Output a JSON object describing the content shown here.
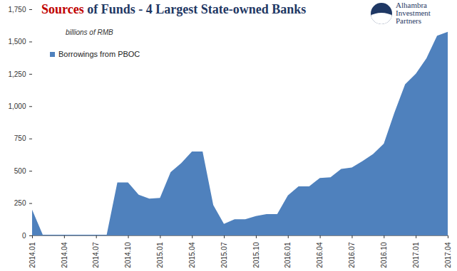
{
  "chart_data": {
    "type": "area",
    "title": "Sources of Funds - 4 Largest State-owned Banks",
    "subtitle": "billions of RMB",
    "logo_text": "Alhambra Investment Partners",
    "categories": [
      "2014.01",
      null,
      null,
      "2014.04",
      null,
      null,
      "2014.07",
      null,
      null,
      "2014.10",
      null,
      null,
      "2015.01",
      null,
      null,
      "2015.04",
      null,
      null,
      "2015.07",
      null,
      null,
      "2015.10",
      null,
      null,
      "2016.01",
      null,
      null,
      "2016.04",
      null,
      null,
      "2016.07",
      null,
      null,
      "2016.10",
      null,
      null,
      "2017.01",
      null,
      null,
      "2017.04"
    ],
    "series": [
      {
        "name": "Borrowings from PBOC",
        "color": "#4f81bd",
        "values": [
          200,
          5,
          5,
          5,
          5,
          5,
          5,
          5,
          410,
          410,
          315,
          285,
          290,
          490,
          560,
          650,
          650,
          235,
          90,
          125,
          125,
          150,
          165,
          165,
          310,
          380,
          380,
          445,
          450,
          515,
          525,
          575,
          630,
          710,
          950,
          1170,
          1250,
          1370,
          1545,
          1575
        ]
      }
    ],
    "ylim": [
      0,
      1750
    ],
    "yticks": [
      0,
      250,
      500,
      750,
      {
        "value": 1000,
        "label": "1,000"
      },
      {
        "value": 1250,
        "label": "1,250"
      },
      {
        "value": 1500,
        "label": "1,500"
      },
      {
        "value": 1750,
        "label": "1,750"
      }
    ],
    "grid": false,
    "legend": "top-left"
  }
}
